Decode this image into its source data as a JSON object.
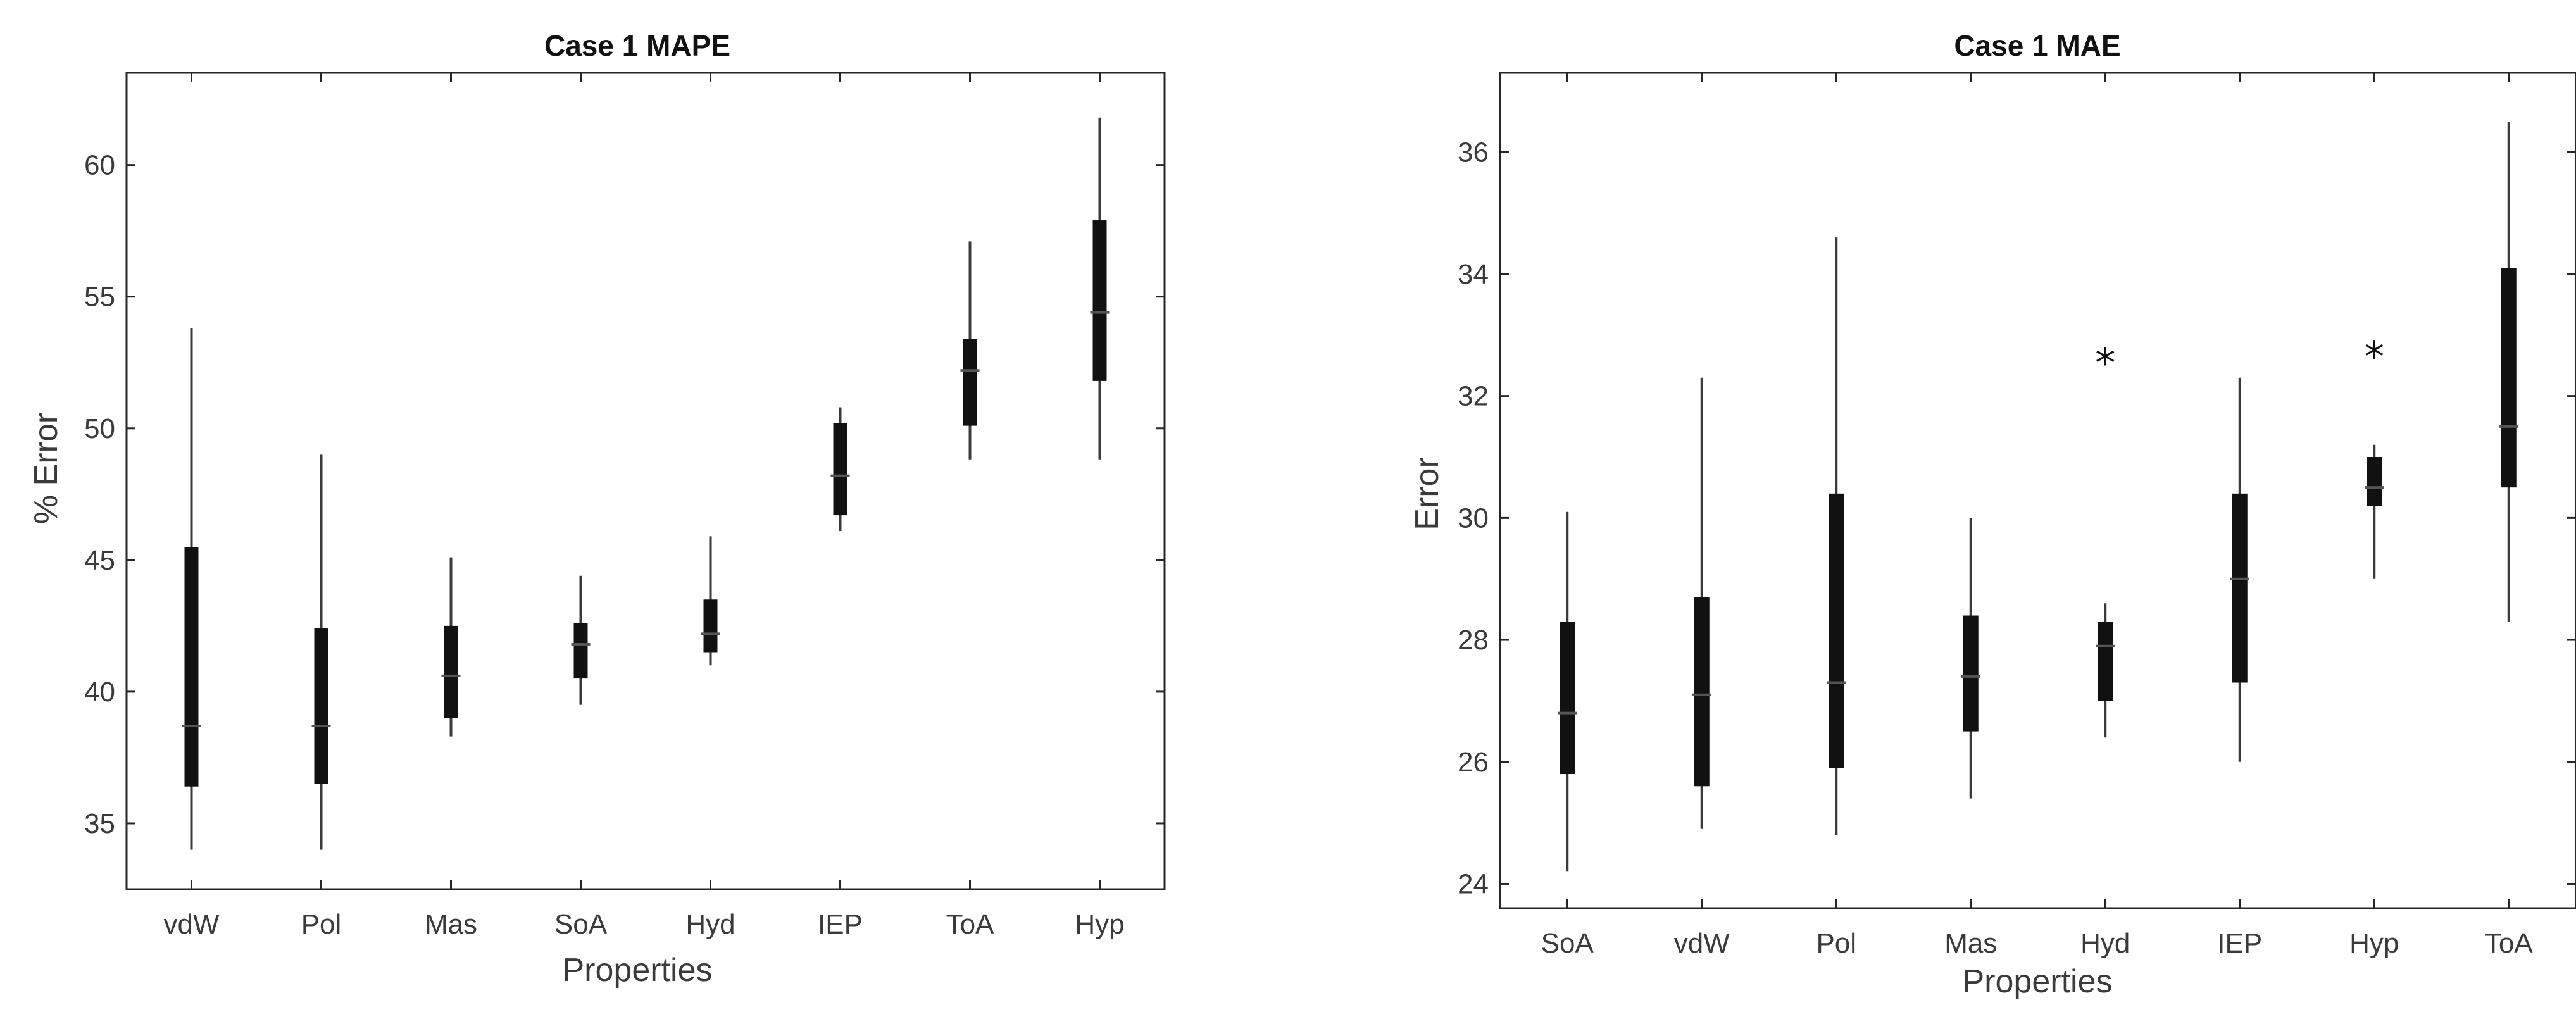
{
  "chart_data": [
    {
      "type": "box",
      "title": "Case 1 MAPE",
      "xlabel": "Properties",
      "ylabel": "% Error",
      "ylim": [
        32.5,
        63.5
      ],
      "yticks": [
        35,
        40,
        45,
        50,
        55,
        60
      ],
      "grid": true,
      "categories": [
        "vdW",
        "Pol",
        "Mas",
        "SoA",
        "Hyd",
        "IEP",
        "ToA",
        "Hyp"
      ],
      "boxes": [
        {
          "min": 34.0,
          "q1": 36.4,
          "median": 38.7,
          "q3": 45.5,
          "max": 53.8,
          "outliers": []
        },
        {
          "min": 34.0,
          "q1": 36.5,
          "median": 38.7,
          "q3": 42.4,
          "max": 49.0,
          "outliers": []
        },
        {
          "min": 38.3,
          "q1": 39.0,
          "median": 40.6,
          "q3": 42.5,
          "max": 45.1,
          "outliers": []
        },
        {
          "min": 39.5,
          "q1": 40.5,
          "median": 41.8,
          "q3": 42.6,
          "max": 44.4,
          "outliers": []
        },
        {
          "min": 41.0,
          "q1": 41.5,
          "median": 42.2,
          "q3": 43.5,
          "max": 45.9,
          "outliers": []
        },
        {
          "min": 46.1,
          "q1": 46.7,
          "median": 48.2,
          "q3": 50.2,
          "max": 50.8,
          "outliers": []
        },
        {
          "min": 48.8,
          "q1": 50.1,
          "median": 52.2,
          "q3": 53.4,
          "max": 57.1,
          "outliers": []
        },
        {
          "min": 48.8,
          "q1": 51.8,
          "median": 54.4,
          "q3": 57.9,
          "max": 61.8,
          "outliers": []
        }
      ]
    },
    {
      "type": "box",
      "title": "Case 1 MAE",
      "xlabel": "Properties",
      "ylabel": "Error",
      "ylim": [
        23.6,
        37.3
      ],
      "yticks": [
        24,
        26,
        28,
        30,
        32,
        34,
        36
      ],
      "grid": true,
      "categories": [
        "SoA",
        "vdW",
        "Pol",
        "Mas",
        "Hyd",
        "IEP",
        "Hyp",
        "ToA"
      ],
      "boxes": [
        {
          "min": 24.2,
          "q1": 25.8,
          "median": 26.8,
          "q3": 28.3,
          "max": 30.1,
          "outliers": []
        },
        {
          "min": 24.9,
          "q1": 25.6,
          "median": 27.1,
          "q3": 28.7,
          "max": 32.3,
          "outliers": []
        },
        {
          "min": 24.8,
          "q1": 25.9,
          "median": 27.3,
          "q3": 30.4,
          "max": 34.6,
          "outliers": []
        },
        {
          "min": 25.4,
          "q1": 26.5,
          "median": 27.4,
          "q3": 28.4,
          "max": 30.0,
          "outliers": []
        },
        {
          "min": 26.4,
          "q1": 27.0,
          "median": 27.9,
          "q3": 28.3,
          "max": 28.6,
          "outliers": [
            32.6
          ]
        },
        {
          "min": 26.0,
          "q1": 27.3,
          "median": 29.0,
          "q3": 30.4,
          "max": 32.3,
          "outliers": []
        },
        {
          "min": 29.0,
          "q1": 30.2,
          "median": 30.5,
          "q3": 31.0,
          "max": 31.2,
          "outliers": [
            32.7
          ]
        },
        {
          "min": 28.3,
          "q1": 30.5,
          "median": 31.5,
          "q3": 34.1,
          "max": 36.5,
          "outliers": []
        }
      ]
    }
  ]
}
